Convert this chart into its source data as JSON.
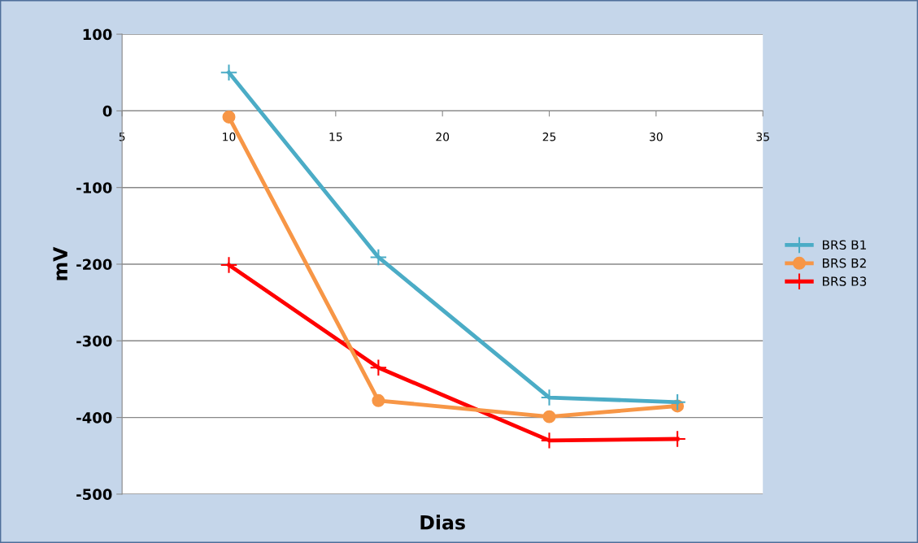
{
  "chart_data": {
    "type": "line",
    "xlabel": "Dias",
    "ylabel": "mV",
    "x": [
      10,
      17,
      25,
      31
    ],
    "series": [
      {
        "name": "BRS B1",
        "color": "#4bacc6",
        "marker": "cross",
        "values": [
          50,
          -191,
          -374,
          -380
        ]
      },
      {
        "name": "BRS B2",
        "color": "#f79646",
        "marker": "circle",
        "values": [
          -8,
          -378,
          -399,
          -385
        ]
      },
      {
        "name": "BRS B3",
        "color": "#ff0000",
        "marker": "cross",
        "values": [
          -201,
          -335,
          -430,
          -428
        ]
      }
    ],
    "xlim": [
      5,
      35
    ],
    "xticks": [
      5,
      10,
      15,
      20,
      25,
      30,
      35
    ],
    "ylim": [
      -500,
      100
    ],
    "yticks": [
      -500,
      -400,
      -300,
      -200,
      -100,
      0,
      100
    ],
    "grid": "y",
    "legend": "right",
    "line_style": "solid"
  }
}
